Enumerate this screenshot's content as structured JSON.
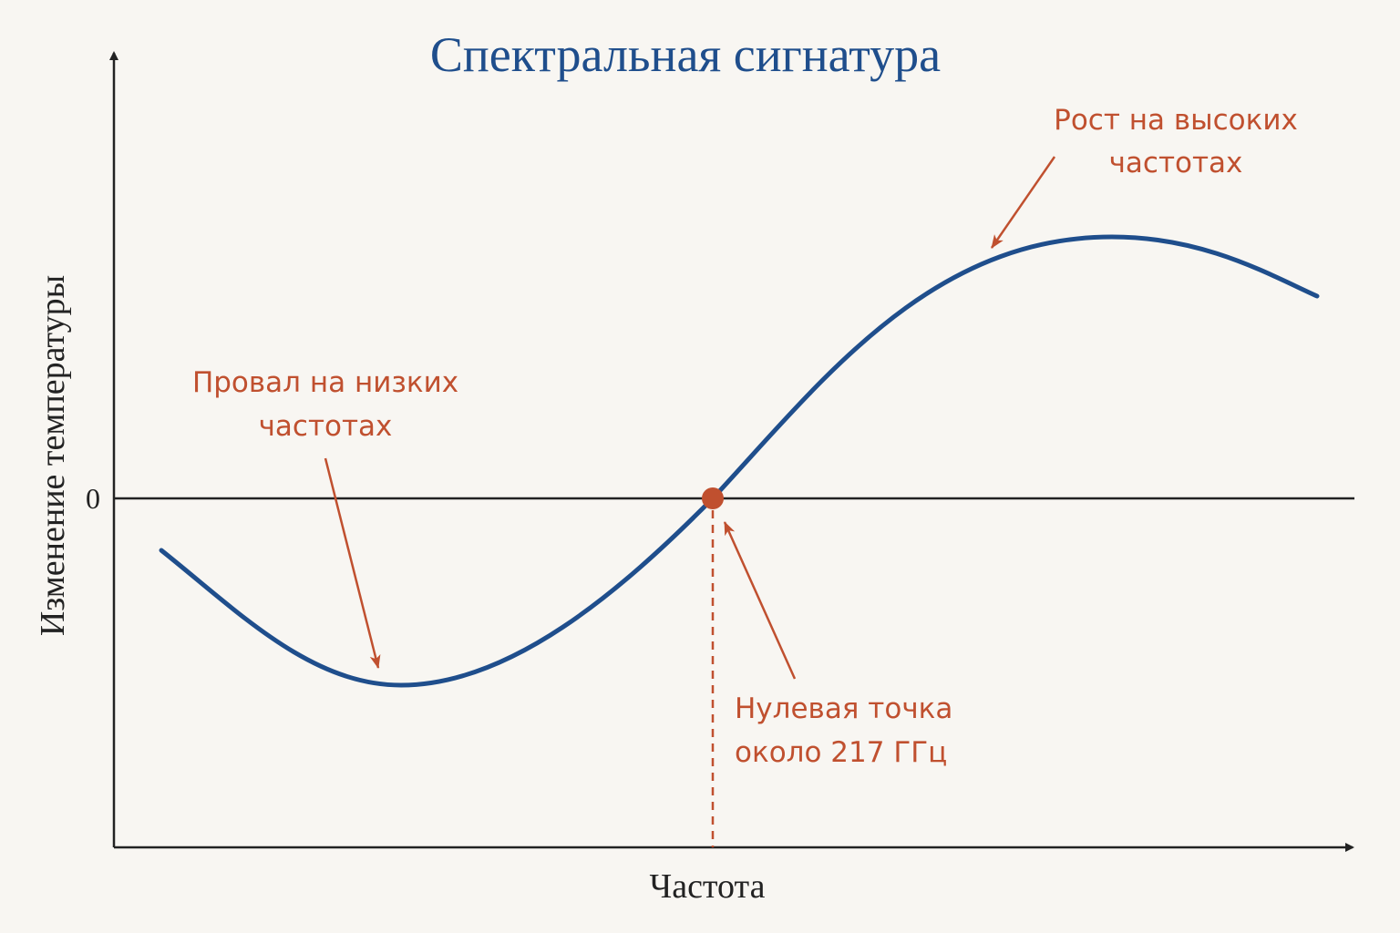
{
  "title": "Спектральная сигнатура",
  "axes": {
    "y_label": "Изменение температуры",
    "x_label": "Частота",
    "zero_label": "0"
  },
  "annotations": {
    "low": [
      "Провал на низких",
      "частотах"
    ],
    "high": [
      "Рост на высоких",
      "частотах"
    ],
    "zero": [
      "Нулевая точка",
      "около 217 ГГц"
    ]
  }
}
